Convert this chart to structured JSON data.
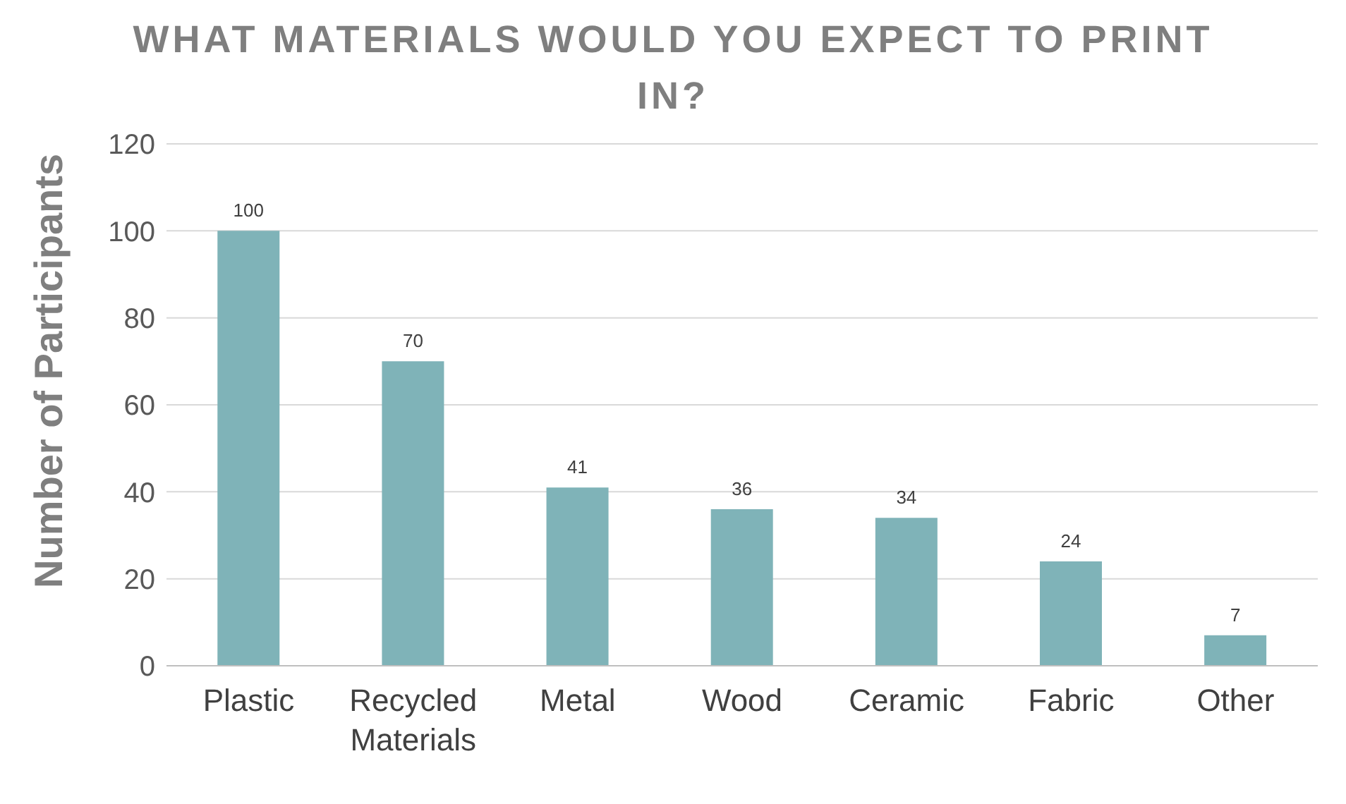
{
  "chart_data": {
    "type": "bar",
    "title": "WHAT MATERIALS WOULD YOU EXPECT TO PRINT IN?",
    "ylabel": "Number of Participants",
    "categories": [
      "Plastic",
      "Recycled Materials",
      "Metal",
      "Wood",
      "Ceramic",
      "Fabric",
      "Other"
    ],
    "values": [
      100,
      70,
      41,
      36,
      34,
      24,
      7
    ],
    "color": "#7fb3b8",
    "ylim": [
      0,
      120
    ],
    "yticks": [
      0,
      20,
      40,
      60,
      80,
      100,
      120
    ],
    "grid": "y",
    "data_labels": true
  }
}
